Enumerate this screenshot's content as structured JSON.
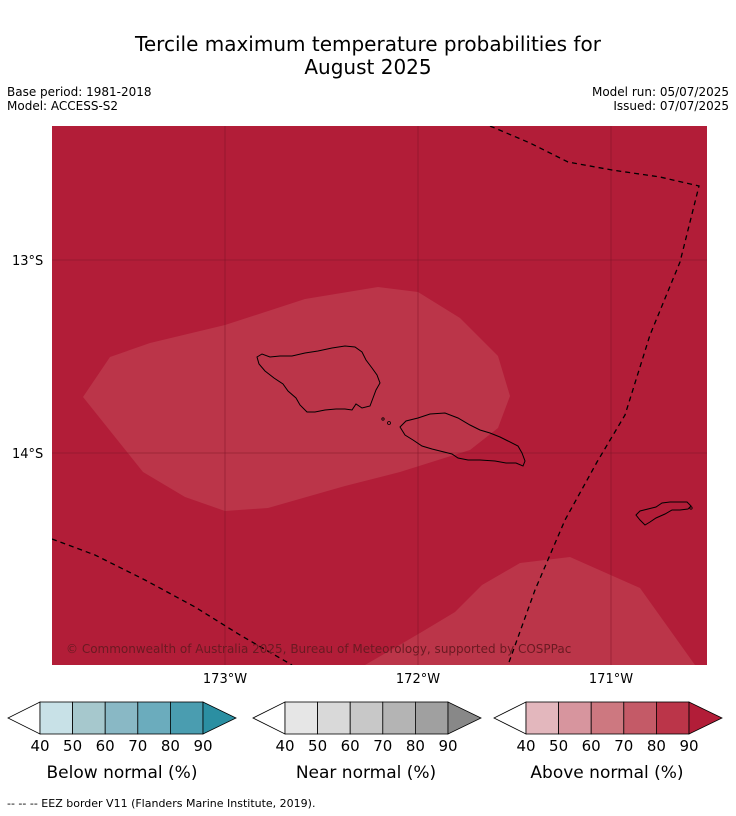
{
  "title_line1": "Tercile maximum temperature probabilities for",
  "title_line2": "August 2025",
  "meta": {
    "base_period": "Base period: 1981-2018",
    "model": "Model: ACCESS-S2",
    "model_run": "Model run: 05/07/2025",
    "issued": "Issued: 07/07/2025"
  },
  "map": {
    "lat_labels": [
      "13°S",
      "14°S"
    ],
    "lon_labels": [
      "173°W",
      "172°W",
      "171°W"
    ],
    "copyright": "© Commonwealth of Australia 2025, Bureau of Meteorology, supported by COSPPac",
    "colors": {
      "above_90": "#b21d38",
      "above_80": "#bb3549",
      "coast": "#000000",
      "eez": "#000000"
    }
  },
  "legends": [
    {
      "title": "Below normal (%)",
      "ticks": [
        "40",
        "50",
        "60",
        "70",
        "80",
        "90"
      ],
      "colors": [
        "#c8e1e7",
        "#a6c8cd",
        "#89b8c5",
        "#6bacbd",
        "#4a9db0",
        "#2b8fa2"
      ]
    },
    {
      "title": "Near normal (%)",
      "ticks": [
        "40",
        "50",
        "60",
        "70",
        "80",
        "90"
      ],
      "colors": [
        "#e6e6e6",
        "#d9d9d9",
        "#c8c8c8",
        "#b4b4b4",
        "#a0a0a0",
        "#888888"
      ]
    },
    {
      "title": "Above normal (%)",
      "ticks": [
        "40",
        "50",
        "60",
        "70",
        "80",
        "90"
      ],
      "colors": [
        "#e3b7bd",
        "#d7959e",
        "#cd7880",
        "#c45a67",
        "#bb3549",
        "#b21d38"
      ]
    }
  ],
  "footnote": "--  --  -- EEZ border V11 (Flanders Marine Institute, 2019)."
}
